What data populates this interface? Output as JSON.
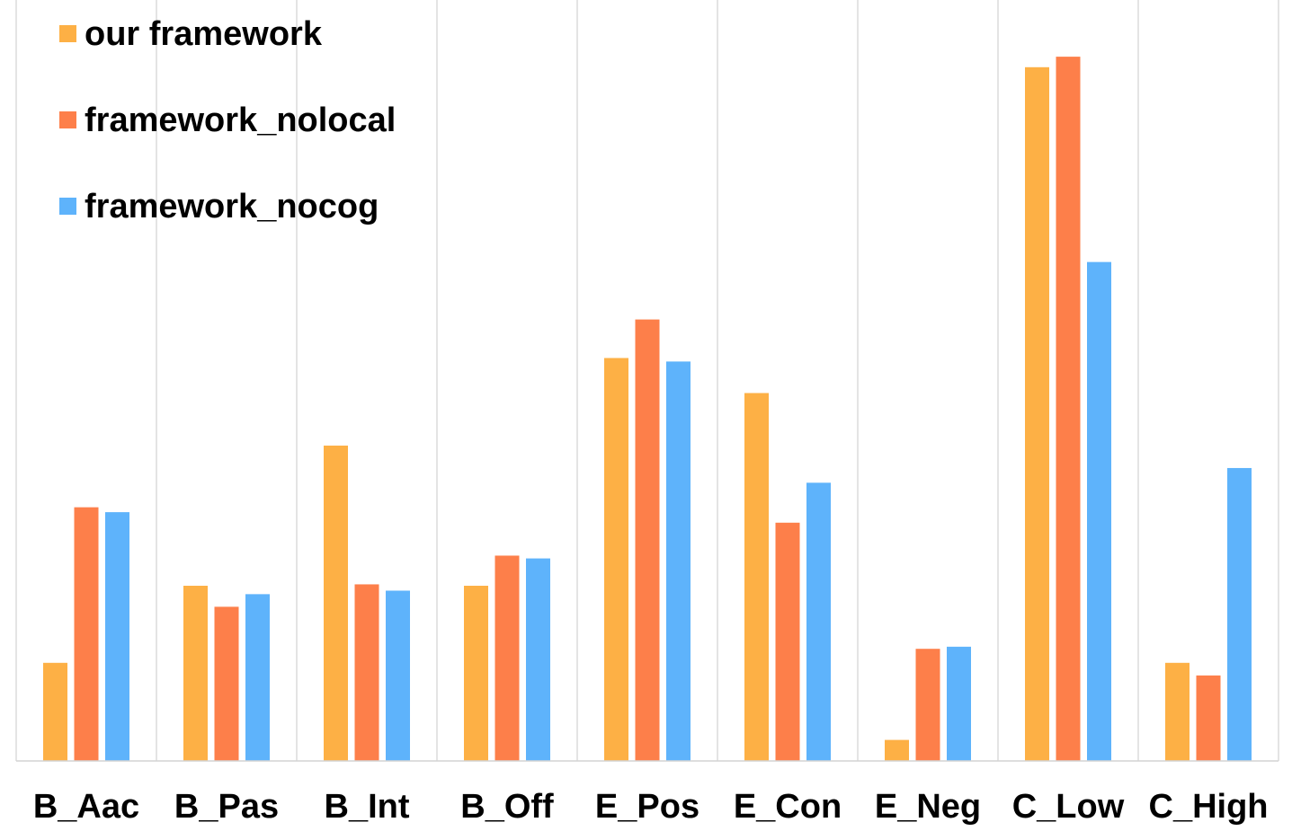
{
  "chart_data": {
    "type": "bar",
    "title": "",
    "xlabel": "",
    "ylabel": "",
    "ylim": [
      0,
      100
    ],
    "grid": "vertical category separators",
    "legend_position": "top-left",
    "categories": [
      "B_Aac",
      "B_Pas",
      "B_Int",
      "B_Off",
      "E_Pos",
      "E_Con",
      "E_Neg",
      "C_Low",
      "C_High"
    ],
    "series": [
      {
        "name": "our framework",
        "color": "#FDB045",
        "values": [
          14,
          25,
          45,
          25,
          57.5,
          52.5,
          3,
          99,
          14
        ]
      },
      {
        "name": "framework_nolocal",
        "color": "#FD7F4A",
        "values": [
          36.2,
          22,
          25.2,
          29.3,
          63,
          34,
          16,
          100.5,
          12.2
        ]
      },
      {
        "name": "framework_nocog",
        "color": "#5EB3FB",
        "values": [
          35.5,
          23.8,
          24.3,
          28.9,
          57,
          39.7,
          16.3,
          71.2,
          41.8
        ]
      }
    ]
  }
}
